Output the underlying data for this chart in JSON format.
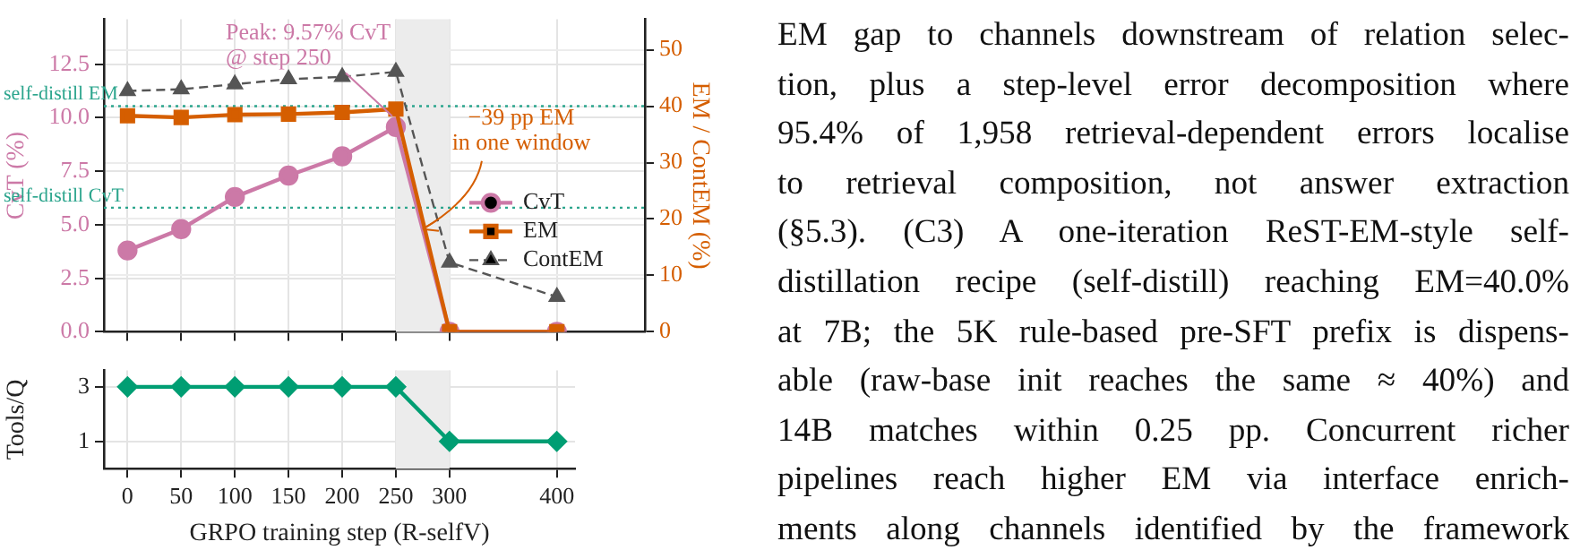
{
  "chart_data": [
    {
      "type": "line",
      "x": [
        0,
        50,
        100,
        150,
        200,
        250,
        300,
        400
      ],
      "xlim": [
        -22,
        482
      ],
      "xticks": [
        0,
        50,
        100,
        150,
        200,
        250,
        300,
        400
      ],
      "ylabel": "CvT (%)",
      "y2label": "EM / ContEM (%)",
      "ylim": [
        0,
        14.6
      ],
      "yticks": [
        {
          "value": 0,
          "label": "0.0"
        },
        {
          "value": 2.5,
          "label": "2.5"
        },
        {
          "value": 5,
          "label": "5.0"
        },
        {
          "value": 7.5,
          "label": "7.5"
        },
        {
          "value": 10,
          "label": "10.0"
        },
        {
          "value": 12.5,
          "label": "12.5"
        }
      ],
      "y2lim": [
        0,
        55.4
      ],
      "y2ticks": [
        0,
        10,
        20,
        30,
        40,
        50
      ],
      "tick_labels": "y",
      "grid": true,
      "legend": "right",
      "series": [
        {
          "name": "CvT",
          "color": "#cc79a7",
          "marker": "circle",
          "line_style": "solid",
          "values": [
            3.8,
            4.8,
            6.3,
            7.3,
            8.2,
            9.57,
            0,
            0
          ]
        },
        {
          "name": "EM",
          "color": "#d55e00",
          "marker": "square",
          "line_style": "solid",
          "axis": "y2",
          "values": [
            38.3,
            38.0,
            38.5,
            38.6,
            38.9,
            39.5,
            0,
            0
          ]
        },
        {
          "name": "ContEM",
          "color": "#555555",
          "marker": "triangle",
          "line_style": "dashed",
          "axis": "y2",
          "values": [
            42.7,
            43.0,
            43.9,
            44.8,
            45.2,
            46.1,
            12.3,
            6.2
          ]
        }
      ],
      "ref_lines": [
        {
          "axis": "y2",
          "value": 40,
          "label": "self-distill EM",
          "color": "#2ca58d",
          "line_style": "dotted"
        },
        {
          "axis": "y",
          "value": 5.8,
          "label": "self-distill CvT",
          "color": "#2ca58d",
          "line_style": "dotted"
        }
      ],
      "bands": [
        {
          "axis": "x",
          "from": 250,
          "to": 300,
          "color": "#ececec"
        }
      ],
      "annotations": [
        {
          "text": "Peak: 9.57% CvT\n@ step 250",
          "x": 250,
          "y": 9.57
        },
        {
          "text": "−39 pp EM\nin one window",
          "x": 275,
          "y": 4.8
        }
      ]
    },
    {
      "type": "line",
      "x": [
        0,
        50,
        100,
        150,
        200,
        250,
        300,
        400
      ],
      "xlim": [
        -22,
        417
      ],
      "xticks": [
        0,
        50,
        100,
        150,
        200,
        250,
        300,
        400
      ],
      "xlabel": "GRPO training step (R-selfV)",
      "ylabel": "Tools/Q",
      "ylim": [
        0,
        3.6
      ],
      "yticks": [
        1,
        3
      ],
      "grid": true,
      "series": [
        {
          "color": "#009e73",
          "marker": "diamond",
          "line_style": "solid",
          "values": [
            3,
            3,
            3,
            3,
            3,
            3,
            1,
            1
          ]
        }
      ],
      "bands": [
        {
          "axis": "x",
          "from": 250,
          "to": 300,
          "color": "#ececec"
        }
      ]
    },
    {
      "type": "other",
      "annotations": [
        "EM gap to channels downstream of relation selec-",
        "tion, plus a step-level error decomposition where",
        "95.4% of 1,958 retrieval-dependent errors localise",
        "to retrieval composition, not answer extraction",
        "(§5.3). (C3) A one-iteration ReST-EM-style self-",
        "distillation recipe (self-distill) reaching EM=40.0%",
        "at 7B; the 5K rule-based pre-SFT prefix is dispens-",
        "able (raw-base init reaches the same ≈ 40%) and",
        "14B matches within 0.25 pp. Concurrent richer",
        "pipelines reach higher EM via interface enrich-",
        "ments along channels identified by the framework"
      ]
    }
  ]
}
